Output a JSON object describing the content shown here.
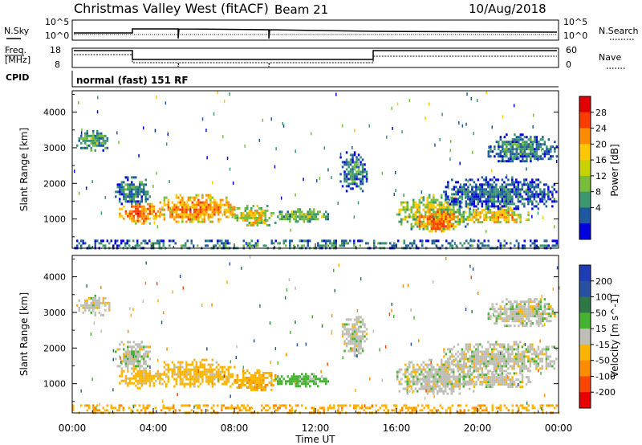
{
  "header": {
    "site": "Christmas Valley West (fitACF)",
    "beam": "Beam 21",
    "date": "10/Aug/2018"
  },
  "status_panels": {
    "nsky_label": "N.Sky",
    "nsky_ticks": [
      "10^5",
      "10^0"
    ],
    "nsearch_label": "N.Search",
    "nsearch_ticks": [
      "10^5",
      "10^0"
    ],
    "freq_label": [
      "Freq.",
      "[MHz]"
    ],
    "freq_ticks": [
      "18",
      "8"
    ],
    "nave_label": "Nave",
    "nave_ticks": [
      "60",
      "0"
    ],
    "cpid_label": "CPID",
    "cpid_value": "normal (fast) 151 RF"
  },
  "power_scale": {
    "title": "Power [dB]",
    "ticks": [
      "28",
      "24",
      "20",
      "16",
      "12",
      "8",
      "4"
    ],
    "colors": [
      "#e00000",
      "#ff3c00",
      "#ff8c00",
      "#ffc800",
      "#c8d200",
      "#78be3c",
      "#3c966e",
      "#1e5aa0",
      "#0000e0"
    ]
  },
  "velocity_scale": {
    "title": "Velocity [m s^-1]",
    "ticks": [
      "200",
      "100",
      "50",
      "15",
      "-15",
      "-50",
      "-100",
      "-200"
    ],
    "colors": [
      "#1e3cb4",
      "#2850a0",
      "#2d7846",
      "#46b432",
      "#bebeb4",
      "#ffb400",
      "#ff8c00",
      "#ff4600",
      "#e60000"
    ]
  },
  "chart_data": [
    {
      "type": "heatmap",
      "panel": "power",
      "ylabel": "Slant Range [km]",
      "yticks": [
        1000,
        2000,
        3000,
        4000
      ],
      "ylim": [
        180,
        4600
      ],
      "xlim": [
        0,
        24
      ],
      "xticks": [
        "00:00",
        "04:00",
        "08:00",
        "12:00",
        "16:00",
        "20:00",
        "00:00"
      ],
      "regions": [
        {
          "t": [
            0.2,
            1.8
          ],
          "r": [
            2950,
            3500
          ],
          "v": 12
        },
        {
          "t": [
            2.1,
            3.8
          ],
          "r": [
            1400,
            2200
          ],
          "v": 10
        },
        {
          "t": [
            2.3,
            4.3
          ],
          "r": [
            900,
            1450
          ],
          "v": 24
        },
        {
          "t": [
            4.3,
            8.0
          ],
          "r": [
            900,
            1700
          ],
          "v": 22
        },
        {
          "t": [
            8.0,
            10.0
          ],
          "r": [
            800,
            1400
          ],
          "v": 18
        },
        {
          "t": [
            10.0,
            12.6
          ],
          "r": [
            950,
            1300
          ],
          "v": 14
        },
        {
          "t": [
            13.2,
            14.5
          ],
          "r": [
            1800,
            2900
          ],
          "v": 9
        },
        {
          "t": [
            16.0,
            19.8
          ],
          "r": [
            700,
            1700
          ],
          "v": 16
        },
        {
          "t": [
            17.0,
            19.0
          ],
          "r": [
            650,
            1300
          ],
          "v": 24
        },
        {
          "t": [
            19.4,
            22.6
          ],
          "r": [
            900,
            1350
          ],
          "v": 20
        },
        {
          "t": [
            18.3,
            23.9
          ],
          "r": [
            1300,
            2200
          ],
          "v": 8
        },
        {
          "t": [
            20.5,
            23.9
          ],
          "r": [
            2600,
            3400
          ],
          "v": 9
        },
        {
          "t": [
            0.0,
            24.0
          ],
          "r": [
            180,
            420
          ],
          "v": 10
        }
      ]
    },
    {
      "type": "heatmap",
      "panel": "velocity",
      "ylabel": "Slant Range [km]",
      "yticks": [
        1000,
        2000,
        3000,
        4000
      ],
      "ylim": [
        180,
        4600
      ],
      "xlim": [
        0,
        24
      ],
      "xticks": [
        "00:00",
        "04:00",
        "08:00",
        "12:00",
        "16:00",
        "20:00",
        "00:00"
      ],
      "xlabel": "Time UT",
      "regions": [
        {
          "t": [
            0.2,
            1.8
          ],
          "r": [
            2950,
            3500
          ],
          "v": 0
        },
        {
          "t": [
            2.1,
            3.8
          ],
          "r": [
            1400,
            2200
          ],
          "v": 0
        },
        {
          "t": [
            2.3,
            4.3
          ],
          "r": [
            900,
            1450
          ],
          "v": -30
        },
        {
          "t": [
            4.3,
            8.0
          ],
          "r": [
            900,
            1700
          ],
          "v": -30
        },
        {
          "t": [
            8.0,
            10.0
          ],
          "r": [
            800,
            1400
          ],
          "v": -40
        },
        {
          "t": [
            10.0,
            12.6
          ],
          "r": [
            950,
            1300
          ],
          "v": 30
        },
        {
          "t": [
            13.2,
            14.5
          ],
          "r": [
            1800,
            2900
          ],
          "v": 0
        },
        {
          "t": [
            16.0,
            19.8
          ],
          "r": [
            700,
            1700
          ],
          "v": 0
        },
        {
          "t": [
            19.4,
            22.6
          ],
          "r": [
            900,
            1350
          ],
          "v": 0
        },
        {
          "t": [
            18.3,
            23.9
          ],
          "r": [
            1300,
            2200
          ],
          "v": 0
        },
        {
          "t": [
            20.5,
            23.9
          ],
          "r": [
            2600,
            3400
          ],
          "v": 0
        },
        {
          "t": [
            0.0,
            24.0
          ],
          "r": [
            180,
            420
          ],
          "v": -40
        }
      ]
    }
  ]
}
